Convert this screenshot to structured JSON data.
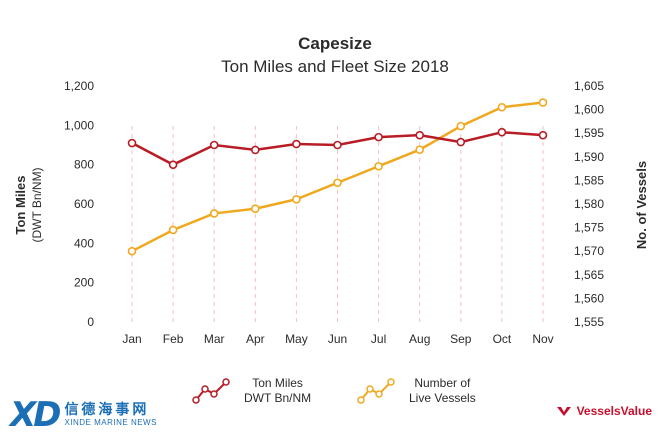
{
  "chart_data": {
    "type": "line",
    "title": "Capesize",
    "subtitle": "Ton Miles and Fleet Size 2018",
    "categories": [
      "Jan",
      "Feb",
      "Mar",
      "Apr",
      "May",
      "Jun",
      "Jul",
      "Aug",
      "Sep",
      "Oct",
      "Nov"
    ],
    "y_left": {
      "label_line1": "Ton Miles",
      "label_line2": "(DWT Bn/NM)",
      "range": [
        0,
        1200
      ],
      "ticks": [
        "0",
        "200",
        "400",
        "600",
        "800",
        "1,000",
        "1,200"
      ]
    },
    "y_right": {
      "label": "No. of Vessels",
      "range": [
        1555,
        1605
      ],
      "ticks": [
        "1,555",
        "1,560",
        "1,565",
        "1,570",
        "1,575",
        "1,580",
        "1,585",
        "1,590",
        "1,595",
        "1,600",
        "1,605"
      ]
    },
    "series": [
      {
        "name": "Ton Miles DWT Bn/NM",
        "axis": "left",
        "color": "#b81c24",
        "values": [
          910,
          800,
          900,
          875,
          905,
          900,
          940,
          950,
          915,
          965,
          950
        ]
      },
      {
        "name": "Number of Live Vessels",
        "axis": "right",
        "color": "#f0a81e",
        "values": [
          1570,
          1574.5,
          1578,
          1579,
          1581,
          1584.5,
          1588,
          1591.5,
          1596.5,
          1600.5,
          1601.5
        ]
      }
    ],
    "grid": "vertical dashed lines at categories",
    "legend_position": "bottom"
  },
  "legend": {
    "tonmiles_line1": "Ton Miles",
    "tonmiles_line2": "DWT Bn/NM",
    "vessels_line1": "Number of",
    "vessels_line2": "Live Vessels"
  },
  "branding": {
    "xd_mark": "XD",
    "xd_chinese": "信德海事网",
    "xd_english": "XINDE MARINE NEWS",
    "vv_name": "VesselsValue"
  }
}
